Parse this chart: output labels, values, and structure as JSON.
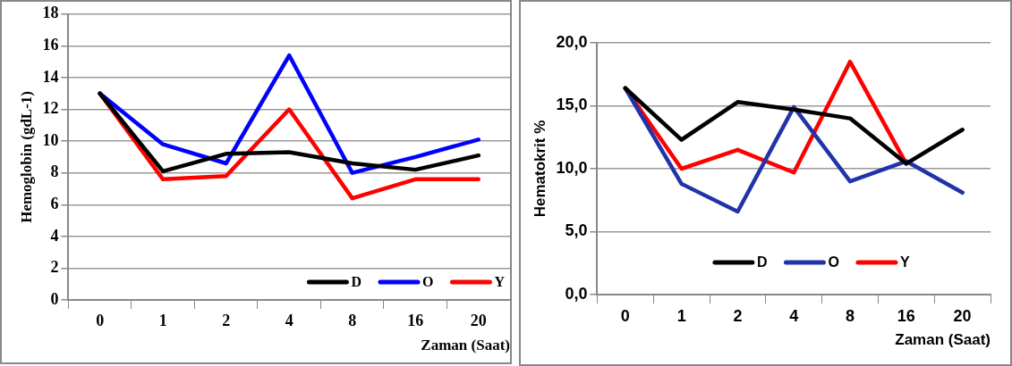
{
  "chart_data": [
    {
      "type": "line",
      "xlabel": "Zaman (Saat)",
      "ylabel": "Hemoglobin (gdL-1)",
      "categories": [
        "0",
        "1",
        "2",
        "4",
        "8",
        "16",
        "20"
      ],
      "series": [
        {
          "name": "D",
          "color": "#000000",
          "values": [
            13,
            8.1,
            9.2,
            9.3,
            8.6,
            8.2,
            9.1
          ]
        },
        {
          "name": "O",
          "color": "#0000ff",
          "values": [
            13,
            9.8,
            8.6,
            15.4,
            8.0,
            9.0,
            10.1
          ]
        },
        {
          "name": "Y",
          "color": "#ff0000",
          "values": [
            13,
            7.6,
            7.8,
            12.0,
            6.4,
            7.6,
            7.6
          ]
        }
      ],
      "ylim": [
        0,
        18
      ],
      "yticks": [
        0,
        2,
        4,
        6,
        8,
        10,
        12,
        14,
        16,
        18
      ],
      "grid": "y",
      "legend": "bottom right",
      "marker": "none",
      "line_style": "solid"
    },
    {
      "type": "line",
      "xlabel": "Zaman (Saat)",
      "ylabel": "Hematokrit %",
      "categories": [
        "0",
        "1",
        "2",
        "4",
        "8",
        "16",
        "20"
      ],
      "series": [
        {
          "name": "D",
          "color": "#000000",
          "values": [
            16.4,
            12.3,
            15.3,
            14.7,
            14.0,
            10.4,
            13.1
          ]
        },
        {
          "name": "O",
          "color": "#2233aa",
          "values": [
            16.4,
            8.8,
            6.6,
            14.9,
            9.0,
            10.6,
            8.1
          ]
        },
        {
          "name": "Y",
          "color": "#ff0000",
          "values": [
            16.4,
            10.0,
            11.5,
            9.7,
            18.5,
            10.4,
            null
          ]
        }
      ],
      "ylim": [
        0,
        20
      ],
      "yticks": [
        {
          "value": 0,
          "label": "0,0"
        },
        {
          "value": 5,
          "label": "5,0"
        },
        {
          "value": 10,
          "label": "10,0"
        },
        {
          "value": 15,
          "label": "15,0"
        },
        {
          "value": 20,
          "label": "20,0"
        }
      ],
      "grid": "y",
      "legend": "bottom",
      "marker": "none",
      "line_style": "solid"
    }
  ]
}
